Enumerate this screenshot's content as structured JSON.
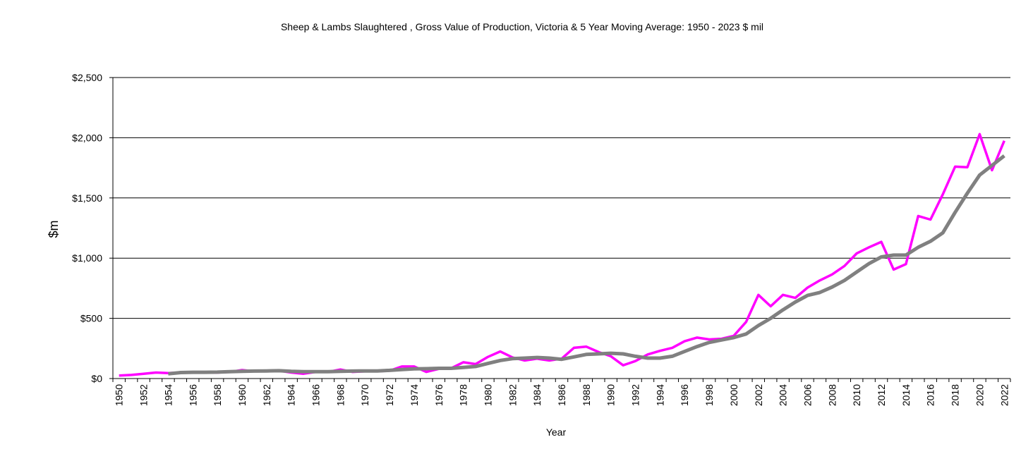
{
  "chart_data": {
    "type": "line",
    "title": "Sheep & Lambs Slaughtered , Gross Value of Production, Victoria & 5 Year Moving Average: 1950 - 2023 $ mil",
    "xlabel": "Year",
    "ylabel": "$m",
    "ylim": [
      0,
      2500
    ],
    "yticks": [
      0,
      500,
      1000,
      1500,
      2000,
      2500
    ],
    "ytick_labels": [
      "$0",
      "$500",
      "$1,000",
      "$1,500",
      "$2,000",
      "$2,500"
    ],
    "grid": true,
    "x": [
      1950,
      1951,
      1952,
      1953,
      1954,
      1955,
      1956,
      1957,
      1958,
      1959,
      1960,
      1961,
      1962,
      1963,
      1964,
      1965,
      1966,
      1967,
      1968,
      1969,
      1970,
      1971,
      1972,
      1973,
      1974,
      1975,
      1976,
      1977,
      1978,
      1979,
      1980,
      1981,
      1982,
      1983,
      1984,
      1985,
      1986,
      1987,
      1988,
      1989,
      1990,
      1991,
      1992,
      1993,
      1994,
      1995,
      1996,
      1997,
      1998,
      1999,
      2000,
      2001,
      2002,
      2003,
      2004,
      2005,
      2006,
      2007,
      2008,
      2009,
      2010,
      2011,
      2012,
      2013,
      2014,
      2015,
      2016,
      2017,
      2018,
      2019,
      2020,
      2021,
      2022
    ],
    "series": [
      {
        "name": "Gross Value of Production",
        "color": "#ff00ff",
        "values": [
          25,
          30,
          40,
          50,
          45,
          50,
          50,
          50,
          50,
          55,
          70,
          60,
          60,
          65,
          50,
          40,
          55,
          55,
          75,
          55,
          60,
          60,
          65,
          100,
          100,
          55,
          80,
          85,
          135,
          120,
          180,
          225,
          175,
          150,
          165,
          150,
          165,
          255,
          265,
          220,
          185,
          110,
          145,
          200,
          230,
          255,
          310,
          340,
          325,
          330,
          355,
          470,
          695,
          600,
          695,
          670,
          755,
          815,
          865,
          935,
          1040,
          1090,
          1135,
          905,
          950,
          1350,
          1320,
          1530,
          1760,
          1755,
          2030,
          1730,
          1975
        ]
      },
      {
        "name": "5 Year Moving Average",
        "color": "#808080",
        "values": [
          null,
          null,
          null,
          null,
          40,
          50,
          52,
          52,
          53,
          57,
          60,
          62,
          63,
          65,
          60,
          57,
          57,
          57,
          60,
          62,
          63,
          63,
          68,
          75,
          80,
          82,
          85,
          85,
          92,
          100,
          125,
          150,
          165,
          170,
          175,
          170,
          160,
          180,
          200,
          205,
          210,
          205,
          185,
          170,
          170,
          185,
          225,
          265,
          300,
          320,
          340,
          370,
          440,
          500,
          570,
          635,
          690,
          715,
          760,
          815,
          885,
          955,
          1010,
          1025,
          1025,
          1090,
          1140,
          1210,
          1380,
          1540,
          1690,
          1770,
          1850
        ]
      }
    ]
  }
}
